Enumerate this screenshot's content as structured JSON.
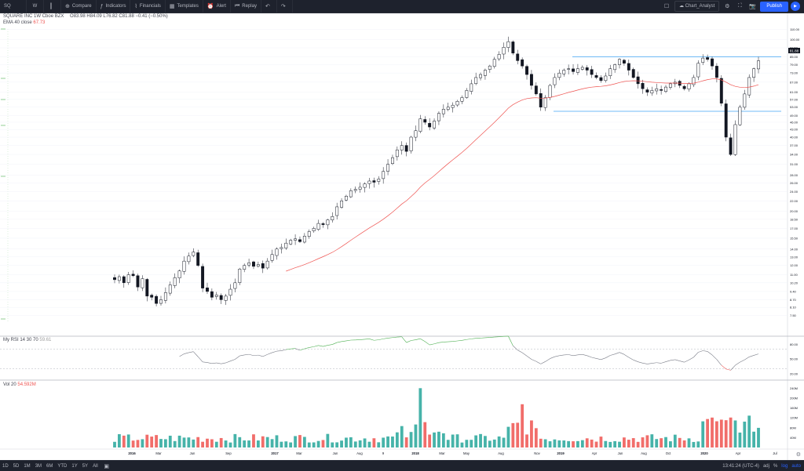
{
  "toolbar": {
    "symbol": "SQ",
    "interval": "W",
    "compare": "Compare",
    "indicators": "Indicators",
    "financials": "Financials",
    "templates": "Templates",
    "alert": "Alert",
    "replay": "Replay",
    "layout_name": "Chart_Analyst",
    "publish": "Publish"
  },
  "legend": {
    "name": "SQUARE INC",
    "interval": "1W",
    "exchange": "Cboe BZX",
    "ohlc": "O83.98 H84.09 L76.82 C81.88 −0.41 (−0.50%)",
    "ema_label": "EMA 40 close",
    "ema_value": "67.73",
    "rsi_label": "My RSI 14 30 70",
    "rsi_value": "59.61",
    "vol_label": "Vol 20",
    "vol_value": "54.592M"
  },
  "price_axis_labels": [
    "110.00",
    "100.00",
    "92.50",
    "85.00",
    "79.00",
    "73.00",
    "67.00",
    "61.00",
    "57.00",
    "53.00",
    "49.00",
    "46.00",
    "43.00",
    "40.00",
    "37.00",
    "34.00",
    "31.00",
    "28.00",
    "26.00",
    "24.00",
    "22.00",
    "20.00",
    "18.50",
    "17.00",
    "15.50",
    "14.00",
    "13.00",
    "12.00",
    "11.00",
    "10.20",
    "9.40",
    "8.70",
    "8.10",
    "7.50"
  ],
  "current_price": "81.88",
  "rsi_axis_labels": [
    "80.00",
    "50.00",
    "20.00"
  ],
  "volume_axis_labels": [
    "240M",
    "200M",
    "160M",
    "120M",
    "80M",
    "40M"
  ],
  "time_axis_labels": [
    "2016",
    "Mar",
    "Jun",
    "Sep",
    "2017",
    "Mar",
    "Jun",
    "Aug",
    "9",
    "2018",
    "Mar",
    "May",
    "Aug",
    "Nov",
    "2019",
    "Apr",
    "Jun",
    "Aug",
    "Oct",
    "2020",
    "Apr",
    "Jul"
  ],
  "bottom": {
    "ranges": [
      "1D",
      "5D",
      "1M",
      "3M",
      "6M",
      "YTD",
      "1Y",
      "5Y",
      "All"
    ],
    "time": "13:41:24 (UTC-4)",
    "adj": "adj",
    "pct": "%",
    "log": "log",
    "auto": "auto"
  },
  "colors": {
    "up": "#26a69a",
    "down": "#ef5350",
    "accent": "#2962ff",
    "ema": "#ef5350",
    "rsi_high": "#4caf50",
    "rsi_low": "#ef5350",
    "level_line": "#42a5f5"
  },
  "chart_data": {
    "type": "candlestick",
    "symbol": "SQ",
    "scale": "log",
    "key_levels": [
      85.0,
      51.0
    ],
    "price_range": [
      7.5,
      110.0
    ],
    "weekly_closes_approx": [
      10.5,
      10.8,
      10.2,
      11.0,
      10.9,
      9.8,
      10.6,
      9.0,
      8.9,
      8.4,
      8.7,
      9.3,
      10.0,
      10.7,
      11.4,
      12.5,
      13.1,
      13.6,
      12.0,
      9.7,
      9.4,
      8.9,
      9.1,
      8.7,
      9.0,
      9.6,
      10.2,
      11.6,
      12.0,
      12.3,
      11.9,
      12.1,
      11.7,
      12.5,
      13.3,
      14.0,
      14.2,
      14.8,
      15.2,
      15.4,
      15.0,
      15.8,
      16.5,
      17.0,
      17.8,
      17.6,
      18.4,
      19.0,
      20.8,
      22.0,
      23.0,
      24.2,
      24.5,
      25.0,
      25.8,
      26.5,
      26.2,
      27.0,
      29.0,
      31.0,
      33.0,
      35.5,
      37.0,
      35.0,
      40.0,
      42.5,
      47.5,
      46.0,
      44.0,
      46.5,
      50.0,
      52.0,
      53.0,
      54.0,
      56.0,
      58.0,
      62.0,
      66.0,
      70.0,
      72.0,
      75.0,
      78.0,
      83.0,
      87.0,
      93.0,
      98.0,
      88.0,
      82.0,
      78.0,
      72.0,
      65.0,
      60.0,
      53.0,
      58.0,
      65.0,
      70.0,
      73.0,
      75.0,
      76.0,
      74.0,
      76.0,
      77.0,
      75.0,
      72.0,
      70.0,
      68.0,
      71.0,
      76.0,
      79.0,
      83.0,
      80.0,
      75.0,
      70.0,
      66.0,
      63.0,
      61.0,
      62.0,
      63.0,
      62.0,
      64.0,
      66.0,
      67.0,
      65.0,
      63.0,
      66.0,
      70.0,
      80.0,
      84.0,
      83.0,
      78.0,
      70.0,
      55.0,
      40.0,
      34.0,
      45.0,
      53.0,
      60.0,
      70.0,
      76.0,
      81.9
    ],
    "ema40_last": 67.73,
    "rsi": {
      "period": 14,
      "lower": 30,
      "upper": 70,
      "last": 59.61
    },
    "volume": {
      "ma": 20,
      "last": "54.592M",
      "range": [
        "0",
        "240M"
      ]
    }
  }
}
